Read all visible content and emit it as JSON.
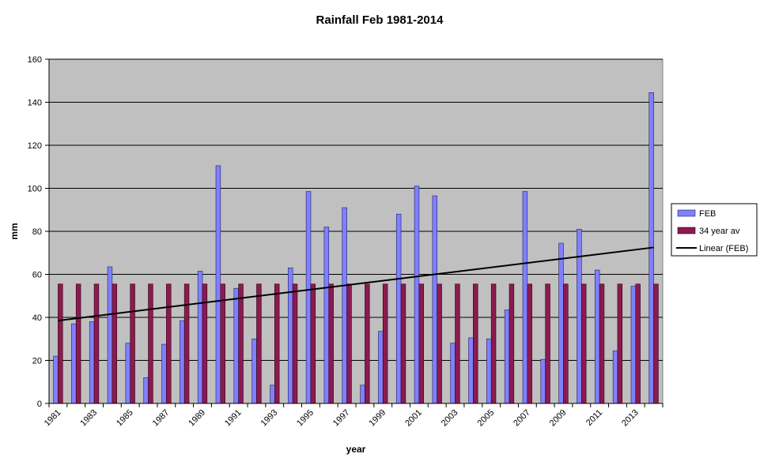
{
  "chart_data": {
    "type": "bar",
    "title": "Rainfall Feb 1981-2014",
    "xlabel": "year",
    "ylabel": "mm",
    "ylim": [
      0,
      160
    ],
    "yticks": [
      0,
      20,
      40,
      60,
      80,
      100,
      120,
      140,
      160
    ],
    "grid": true,
    "legend_position": "right",
    "categories": [
      "1981",
      "1982",
      "1983",
      "1984",
      "1985",
      "1986",
      "1987",
      "1988",
      "1989",
      "1990",
      "1991",
      "1992",
      "1993",
      "1994",
      "1995",
      "1996",
      "1997",
      "1998",
      "1999",
      "2000",
      "2001",
      "2002",
      "2003",
      "2004",
      "2005",
      "2006",
      "2007",
      "2008",
      "2009",
      "2010",
      "2011",
      "2012",
      "2013",
      "2014"
    ],
    "tick_labels": [
      "1981",
      "1983",
      "1985",
      "1987",
      "1989",
      "1991",
      "1993",
      "1995",
      "1997",
      "1999",
      "2001",
      "2003",
      "2005",
      "2007",
      "2009",
      "2011",
      "2013"
    ],
    "series": [
      {
        "name": "FEB",
        "color": "#8080ff",
        "values": [
          22,
          37,
          38,
          63.5,
          28,
          12,
          27.5,
          38.5,
          61.5,
          110.5,
          53.5,
          30,
          8.5,
          63,
          98.5,
          82,
          91,
          8.5,
          33.5,
          88,
          101,
          96.5,
          28,
          30.5,
          30,
          43.5,
          98.5,
          20.5,
          74.5,
          81,
          62,
          24.5,
          54.5,
          144.5
        ]
      },
      {
        "name": "34 year av",
        "color": "#8b1a4f",
        "values": [
          55.5,
          55.5,
          55.5,
          55.5,
          55.5,
          55.5,
          55.5,
          55.5,
          55.5,
          55.5,
          55.5,
          55.5,
          55.5,
          55.5,
          55.5,
          55.5,
          55.5,
          55.5,
          55.5,
          55.5,
          55.5,
          55.5,
          55.5,
          55.5,
          55.5,
          55.5,
          55.5,
          55.5,
          55.5,
          55.5,
          55.5,
          55.5,
          55.5,
          55.5
        ]
      }
    ],
    "trendline": {
      "name": "Linear (FEB)",
      "color": "#000000",
      "start": 38.5,
      "end": 72.5
    },
    "plot_background": "#c0c0c0"
  }
}
